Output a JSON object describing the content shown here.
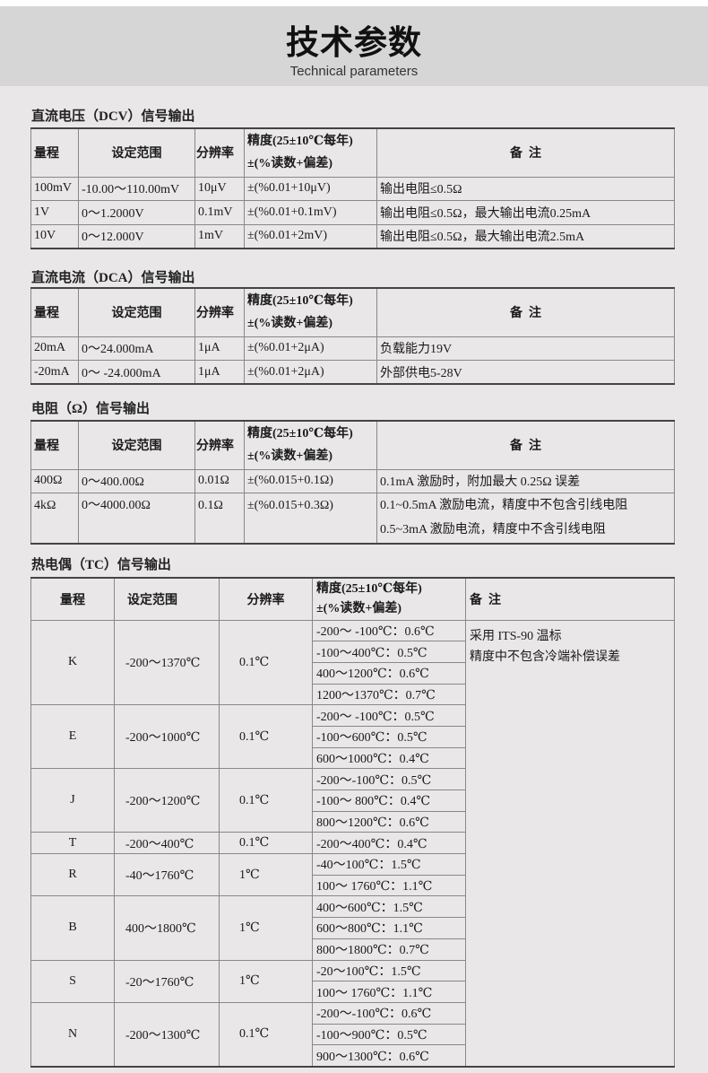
{
  "header": {
    "title": "技术参数",
    "subtitle": "Technical parameters"
  },
  "headers": {
    "range": "量程",
    "set_range": "设定范围",
    "resolution": "分辨率",
    "accuracy_line1": "精度(25±10℃每年)",
    "accuracy_line2": "±(%读数+偏差)",
    "remarks": "备  注"
  },
  "dcv": {
    "title": "直流电压（DCV）信号输出",
    "rows": [
      [
        "100mV",
        "-10.00～110.00mV",
        "10μV",
        "±(%0.01+10μV)",
        "输出电阻≤0.5Ω"
      ],
      [
        "1V",
        "0～1.2000V",
        "0.1mV",
        "±(%0.01+0.1mV)",
        "输出电阻≤0.5Ω，最大输出电流0.25mA"
      ],
      [
        "10V",
        "0～12.000V",
        "1mV",
        "±(%0.01+2mV)",
        "输出电阻≤0.5Ω，最大输出电流2.5mA"
      ]
    ]
  },
  "dca": {
    "title": "直流电流（DCA）信号输出",
    "rows": [
      [
        "20mA",
        "0～24.000mA",
        "1μA",
        "±(%0.01+2μA)",
        "负载能力19V"
      ],
      [
        "-20mA",
        "0～ -24.000mA",
        "1μA",
        "±(%0.01+2μA)",
        "外部供电5-28V"
      ]
    ]
  },
  "ohm": {
    "title": "电阻（Ω）信号输出",
    "rows": [
      [
        "400Ω",
        "0～400.00Ω",
        "0.01Ω",
        "±(%0.015+0.1Ω)",
        "0.1mA 激励时，附加最大 0.25Ω 误差"
      ],
      [
        "4kΩ",
        "0～4000.00Ω",
        "0.1Ω",
        "±(%0.015+0.3Ω)",
        "0.1~0.5mA 激励电流，精度中不包含引线电阻\n0.5~3mA 激励电流，精度中不含引线电阻"
      ]
    ]
  },
  "tc": {
    "title": "热电偶（TC）信号输出",
    "remarks": [
      "采用 ITS-90 温标",
      "精度中不包含冷端补偿误差"
    ],
    "types": [
      {
        "type": "K",
        "range": "-200～1370℃",
        "res": "0.1℃",
        "acc": [
          "-200～ -100℃：0.6℃",
          "-100～400℃：0.5℃",
          "400～1200℃：0.6℃",
          "1200～1370℃：0.7℃"
        ]
      },
      {
        "type": "E",
        "range": "-200～1000℃",
        "res": "0.1℃",
        "acc": [
          "-200～ -100℃：0.5℃",
          "-100～600℃：0.5℃",
          "600～1000℃：0.4℃"
        ]
      },
      {
        "type": "J",
        "range": "-200～1200℃",
        "res": "0.1℃",
        "acc": [
          "-200～-100℃：0.5℃",
          "-100～ 800℃：0.4℃",
          "800～1200℃：0.6℃"
        ]
      },
      {
        "type": "T",
        "range": "-200～400℃",
        "res": "0.1℃",
        "acc": [
          "-200～400℃：0.4℃"
        ]
      },
      {
        "type": "R",
        "range": "-40～1760℃",
        "res": "1℃",
        "acc": [
          "-40～100℃：1.5℃",
          "100～ 1760℃：1.1℃"
        ]
      },
      {
        "type": "B",
        "range": "400～1800℃",
        "res": "1℃",
        "acc": [
          "400～600℃：1.5℃",
          "600～800℃：1.1℃",
          "800～1800℃：0.7℃"
        ]
      },
      {
        "type": "S",
        "range": "-20～1760℃",
        "res": "1℃",
        "acc": [
          "-20～100℃：1.5℃",
          "100～ 1760℃：1.1℃"
        ]
      },
      {
        "type": "N",
        "range": "-200～1300℃",
        "res": "0.1℃",
        "acc": [
          "-200～-100℃：0.6℃",
          "-100～900℃：0.5℃",
          "900～1300℃：0.6℃"
        ]
      }
    ]
  }
}
